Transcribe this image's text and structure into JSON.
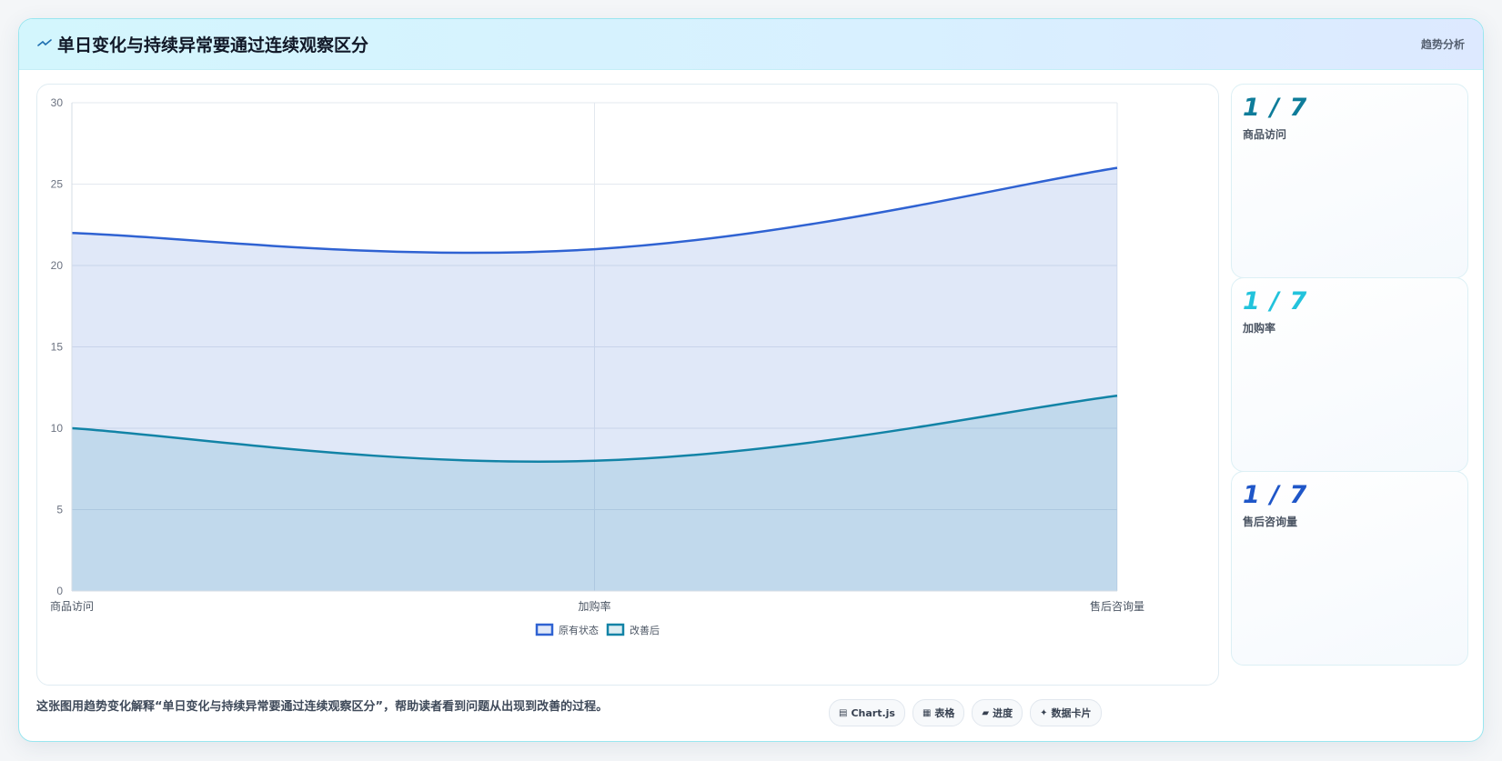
{
  "header": {
    "title": "单日变化与持续异常要通过连续观察区分",
    "tag": "趋势分析"
  },
  "chart_data": {
    "type": "area",
    "categories": [
      "商品访问",
      "加购率",
      "售后咨询量"
    ],
    "series": [
      {
        "name": "原有状态",
        "values": [
          22,
          21,
          26
        ],
        "color": "#2f62d2"
      },
      {
        "name": "改善后",
        "values": [
          10,
          8,
          12
        ],
        "color": "#1283a6"
      }
    ],
    "ylim": [
      0,
      30
    ],
    "yticks": [
      0,
      5,
      10,
      15,
      20,
      25,
      30
    ],
    "grid": true,
    "legend": "bottom"
  },
  "kpis": [
    {
      "value": "1 / 7",
      "label": "商品访问",
      "color": "#0e7c9a"
    },
    {
      "value": "1 / 7",
      "label": "加购率",
      "color": "#22c3dc"
    },
    {
      "value": "1 / 7",
      "label": "售后咨询量",
      "color": "#1f56c8"
    }
  ],
  "footer": {
    "description": "这张图用趋势变化解释“单日变化与持续异常要通过连续观察区分”，帮助读者看到问题从出现到改善的过程。",
    "chips": [
      {
        "icon": "chart-icon",
        "glyph": "▤",
        "label": "Chart.js"
      },
      {
        "icon": "table-icon",
        "glyph": "▦",
        "label": "表格"
      },
      {
        "icon": "progress-icon",
        "glyph": "▰",
        "label": "进度"
      },
      {
        "icon": "sparkle-icon",
        "glyph": "✦",
        "label": "数据卡片"
      }
    ]
  }
}
